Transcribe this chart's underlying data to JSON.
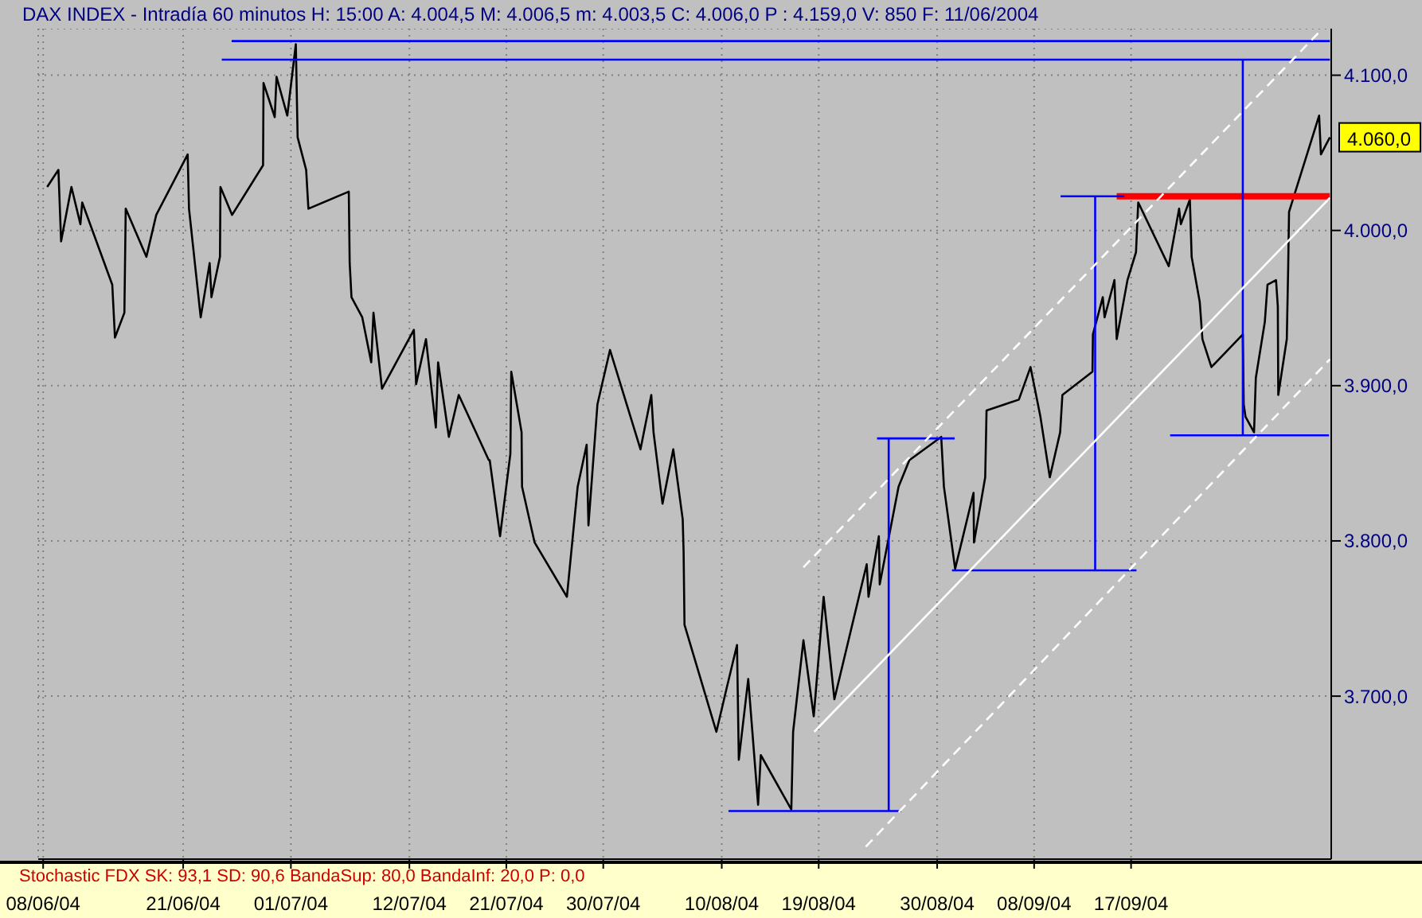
{
  "chart_data": {
    "type": "line",
    "title": "DAX INDEX - Intradía 60 minutos H: 15:00 A: 4.004,5 M: 4.006,5 m: 4.003,5 C: 4.006,0 P : 4.159,0 V: 850 F: 11/06/2004",
    "xlim": [
      "2004-06-07T13:00",
      "2004-10-05T14:00"
    ],
    "ylim": [
      3595,
      4130
    ],
    "xticks": [
      {
        "value": "2004-06-08",
        "label": "08/06/04"
      },
      {
        "value": "2004-06-21",
        "label": "21/06/04"
      },
      {
        "value": "2004-07-01",
        "label": "01/07/04"
      },
      {
        "value": "2004-07-12",
        "label": "12/07/04"
      },
      {
        "value": "2004-07-21",
        "label": "21/07/04"
      },
      {
        "value": "2004-07-30",
        "label": "30/07/04"
      },
      {
        "value": "2004-08-10",
        "label": "10/08/04"
      },
      {
        "value": "2004-08-19",
        "label": "19/08/04"
      },
      {
        "value": "2004-08-30",
        "label": "30/08/04"
      },
      {
        "value": "2004-09-08",
        "label": "08/09/04"
      },
      {
        "value": "2004-09-17",
        "label": "17/09/04"
      }
    ],
    "yticks": [
      {
        "value": 3700,
        "label": "3.700,0"
      },
      {
        "value": 3800,
        "label": "3.800,0"
      },
      {
        "value": 3900,
        "label": "3.900,0"
      },
      {
        "value": 4000,
        "label": "4.000,0"
      },
      {
        "value": 4100,
        "label": "4.100,0"
      }
    ],
    "grid": true,
    "marker": "none",
    "line_style": "solid",
    "annotations": [
      {
        "text": "4.060,0",
        "x": "2004-10-05T11:00",
        "y": 4060
      },
      "Stochastic FDX SK: 93,1 SD: 90,6 BandaSup: 80,0 BandaInf: 20,0 P: 0,0"
    ],
    "series": [
      {
        "color": "#000000",
        "x": [
          "2004-06-08T09:00",
          "2004-06-09T10:00",
          "2004-06-09T16:00",
          "2004-06-10T15:00",
          "2004-06-11T11:00",
          "2004-06-11T15:00",
          "2004-06-14T10:00",
          "2004-06-14T16:00",
          "2004-06-15T13:00",
          "2004-06-15T16:00",
          "2004-06-17T14:00",
          "2004-06-18T12:00",
          "2004-06-21T10:00",
          "2004-06-21T13:00",
          "2004-06-22T15:00",
          "2004-06-23T11:00",
          "2004-06-23T15:00",
          "2004-06-24T10:00",
          "2004-06-24T11:00",
          "2004-06-25T13:00",
          "2004-06-28T10:00",
          "2004-06-28T11:00",
          "2004-06-29T12:00",
          "2004-06-29T16:00",
          "2004-06-30T16:00",
          "2004-07-01T11:00",
          "2004-07-01T15:00",
          "2004-07-02T10:00",
          "2004-07-02T15:00",
          "2004-07-06T09:00",
          "2004-07-06T11:00",
          "2004-07-06T15:00",
          "2004-07-07T15:00",
          "2004-07-08T11:00",
          "2004-07-08T16:00",
          "2004-07-09T11:00",
          "2004-07-12T10:00",
          "2004-07-12T15:00",
          "2004-07-13T13:00",
          "2004-07-14T11:00",
          "2004-07-14T16:00",
          "2004-07-15T16:00",
          "2004-07-16T14:00",
          "2004-07-19T09:00",
          "2004-07-19T11:00",
          "2004-07-20T10:00",
          "2004-07-21T09:00",
          "2004-07-21T11:00",
          "2004-07-22T10:00",
          "2004-07-22T11:00",
          "2004-07-23T15:00",
          "2004-07-26T15:00",
          "2004-07-27T15:00",
          "2004-07-28T11:00",
          "2004-07-28T15:00",
          "2004-07-29T11:00",
          "2004-07-30T15:00",
          "2004-08-02T11:00",
          "2004-08-03T11:00",
          "2004-08-03T16:00",
          "2004-08-04T12:00",
          "2004-08-05T12:00",
          "2004-08-06T09:00",
          "2004-08-06T11:00",
          "2004-08-06T13:00",
          "2004-08-09T12:00",
          "2004-08-10T10:00",
          "2004-08-11T10:00",
          "2004-08-11T14:00",
          "2004-08-12T11:00",
          "2004-08-13T09:00",
          "2004-08-13T15:00",
          "2004-08-16T11:00",
          "2004-08-16T15:00",
          "2004-08-17T14:00",
          "2004-08-18T13:00",
          "2004-08-19T11:00",
          "2004-08-20T11:00",
          "2004-08-23T11:00",
          "2004-08-23T15:00",
          "2004-08-24T14:00",
          "2004-08-24T16:00",
          "2004-08-26T10:00",
          "2004-08-27T10:00",
          "2004-08-30T09:00",
          "2004-08-30T15:00",
          "2004-08-31T16:00",
          "2004-09-02T09:00",
          "2004-09-02T10:00",
          "2004-09-03T11:00",
          "2004-09-03T14:00",
          "2004-09-06T14:00",
          "2004-09-07T16:00",
          "2004-09-08T14:00",
          "2004-09-09T11:00",
          "2004-09-10T10:00",
          "2004-09-10T15:00",
          "2004-09-13T10:00",
          "2004-09-13T11:00",
          "2004-09-14T09:00",
          "2004-09-14T13:00",
          "2004-09-15T11:00",
          "2004-09-15T16:00",
          "2004-09-16T16:00",
          "2004-09-17T11:00",
          "2004-09-17T16:00",
          "2004-09-20T12:00",
          "2004-09-21T11:00",
          "2004-09-21T15:00",
          "2004-09-22T11:00",
          "2004-09-22T15:00",
          "2004-09-23T09:00",
          "2004-09-23T15:00",
          "2004-09-24T11:00",
          "2004-09-27T09:00",
          "2004-09-27T11:00",
          "2004-09-27T15:00",
          "2004-09-28T10:00",
          "2004-09-28T14:00",
          "2004-09-29T10:00",
          "2004-09-29T16:00",
          "2004-09-30T11:00",
          "2004-09-30T15:00",
          "2004-09-30T16:00",
          "2004-10-01T11:00",
          "2004-10-01T14:00",
          "2004-10-01T16:00",
          "2004-10-04T11:00",
          "2004-10-04T15:00",
          "2004-10-05T11:00"
        ],
        "values": [
          4028,
          4039,
          3993,
          4028,
          4004,
          4018,
          3965,
          3931,
          3947,
          4014,
          3983,
          4010,
          4049,
          4014,
          3944,
          3979,
          3957,
          3983,
          4028,
          4010,
          4042,
          4095,
          4073,
          4099,
          4074,
          4120,
          4060,
          4039,
          4014,
          4025,
          3979,
          3957,
          3944,
          3915,
          3947,
          3898,
          3936,
          3901,
          3930,
          3873,
          3915,
          3867,
          3894,
          3852,
          3852,
          3803,
          3856,
          3909,
          3870,
          3835,
          3799,
          3764,
          3835,
          3862,
          3810,
          3888,
          3923,
          3859,
          3894,
          3870,
          3824,
          3859,
          3814,
          3793,
          3746,
          3677,
          3704,
          3733,
          3659,
          3711,
          3630,
          3662,
          3627,
          3677,
          3736,
          3687,
          3764,
          3698,
          3785,
          3764,
          3803,
          3772,
          3835,
          3852,
          3867,
          3835,
          3782,
          3831,
          3799,
          3841,
          3884,
          3891,
          3912,
          3880,
          3841,
          3870,
          3894,
          3909,
          3933,
          3957,
          3944,
          3968,
          3930,
          3968,
          3986,
          4018,
          3977,
          4014,
          4004,
          4020,
          3983,
          3954,
          3930,
          3912,
          3933,
          3888,
          3880,
          3870,
          3905,
          3941,
          3965,
          3968,
          3951,
          3894,
          3930,
          3975,
          4012,
          4074,
          4049,
          4060
        ]
      },
      {
        "color": "#0000ff",
        "x": [
          "2004-06-25T12:00",
          "2004-10-05T11:00"
        ],
        "values": [
          4122,
          4122
        ]
      },
      {
        "color": "#0000ff",
        "x": [
          "2004-06-24T14:00",
          "2004-10-05T11:00"
        ],
        "values": [
          4110,
          4110
        ]
      },
      {
        "color": "#ff0000",
        "x": [
          "2004-09-15T16:00",
          "2004-10-05T11:00"
        ],
        "values": [
          4022,
          4022
        ]
      },
      {
        "color": "#0000ff",
        "x": [
          "2004-09-10T11:00",
          "2004-09-16T09:00"
        ],
        "values": [
          4022,
          4022
        ]
      },
      {
        "color": "#0000ff",
        "x": [
          "2004-08-10T15:00",
          "2004-08-26T16:00"
        ],
        "values": [
          3626,
          3626
        ]
      },
      {
        "color": "#0000ff",
        "x": [
          "2004-08-24T10:00",
          "2004-08-31T15:00"
        ],
        "values": [
          3866,
          3866
        ]
      },
      {
        "color": "#0000ff",
        "x": [
          "2004-08-31T09:00",
          "2004-09-17T12:00"
        ],
        "values": [
          3781,
          3781
        ]
      },
      {
        "color": "#0000ff",
        "x": [
          "2004-09-20T15:00",
          "2004-10-05T09:00"
        ],
        "values": [
          3868,
          3868
        ]
      },
      {
        "color": "#0000ff",
        "x": [
          "2004-08-25T12:00",
          "2004-08-25T12:00"
        ],
        "values": [
          3626,
          3866
        ]
      },
      {
        "color": "#0000ff",
        "x": [
          "2004-09-13T16:00",
          "2004-09-13T16:00"
        ],
        "values": [
          3781,
          4022
        ]
      },
      {
        "color": "#0000ff",
        "x": [
          "2004-09-27T09:00",
          "2004-09-27T09:00"
        ],
        "values": [
          3868,
          4110
        ]
      },
      {
        "color": "#ffffff",
        "x": [
          "2004-08-18T14:00",
          "2004-10-05T11:00"
        ],
        "values": [
          3677,
          4021
        ]
      },
      {
        "color": "#ffffff",
        "line_style": "dashed",
        "x": [
          "2004-08-17T14:00",
          "2004-10-04T12:00"
        ],
        "values": [
          3783,
          4128
        ]
      },
      {
        "color": "#ffffff",
        "line_style": "dashed",
        "x": [
          "2004-08-23T09:00",
          "2004-10-05T11:00"
        ],
        "values": [
          3603,
          3917
        ]
      }
    ]
  }
}
